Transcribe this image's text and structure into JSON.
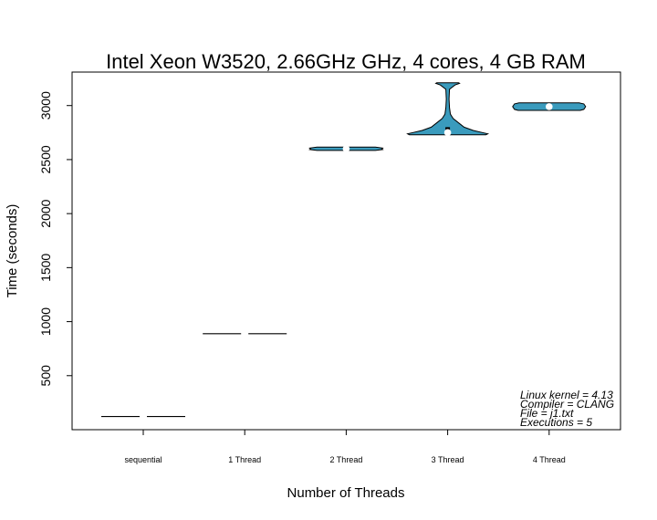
{
  "chart_data": {
    "type": "violin",
    "title": "Intel Xeon W3520, 2.66GHz GHz, 4 cores, 4 GB RAM",
    "xlabel": "Number of Threads",
    "ylabel": "Time (seconds)",
    "categories": [
      "sequential",
      "1 Thread",
      "2 Thread",
      "3 Thread",
      "4 Thread"
    ],
    "ylim": [
      0,
      3310
    ],
    "yticks": [
      500,
      1000,
      1500,
      2000,
      2500,
      3000
    ],
    "ytick_labels": [
      "500",
      "1000",
      "1500",
      "2000",
      "2500",
      "3000"
    ],
    "grid": false,
    "fill_color": "#3a9bbd",
    "outline_color": "#000000",
    "median_color": "#ffffff",
    "series": [
      {
        "category": "sequential",
        "min": 120,
        "max": 125,
        "median": 122,
        "q1": 121,
        "q3": 124
      },
      {
        "category": "1 Thread",
        "min": 880,
        "max": 895,
        "median": 888,
        "q1": 884,
        "q3": 892
      },
      {
        "category": "2 Thread",
        "min": 2585,
        "max": 2615,
        "median": 2600,
        "q1": 2592,
        "q3": 2607
      },
      {
        "category": "3 Thread",
        "min": 2730,
        "max": 3210,
        "median": 2750,
        "q1": 2740,
        "q3": 2800
      },
      {
        "category": "4 Thread",
        "min": 2955,
        "max": 3025,
        "median": 2990,
        "q1": 2975,
        "q3": 3005
      }
    ],
    "annotations": [
      "Linux kernel = 4.13",
      "Compiler = CLANG",
      "File = j1.txt",
      "Executions = 5"
    ]
  }
}
